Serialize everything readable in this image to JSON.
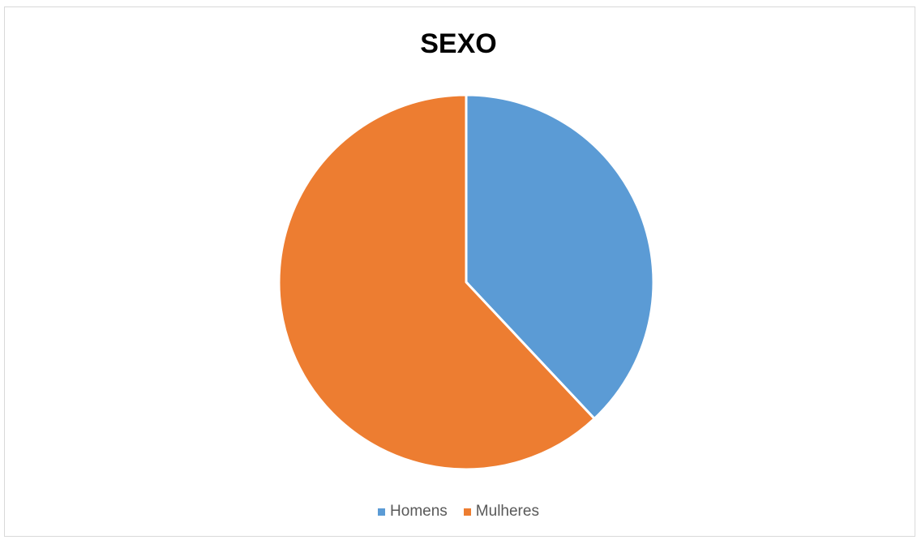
{
  "chart_data": {
    "type": "pie",
    "title": "SEXO",
    "categories": [
      "Homens",
      "Mulheres"
    ],
    "values": [
      38,
      62
    ],
    "colors": [
      "#5b9bd5",
      "#ed7d31"
    ],
    "legend_position": "bottom",
    "start_angle": "top",
    "direction": "clockwise"
  }
}
